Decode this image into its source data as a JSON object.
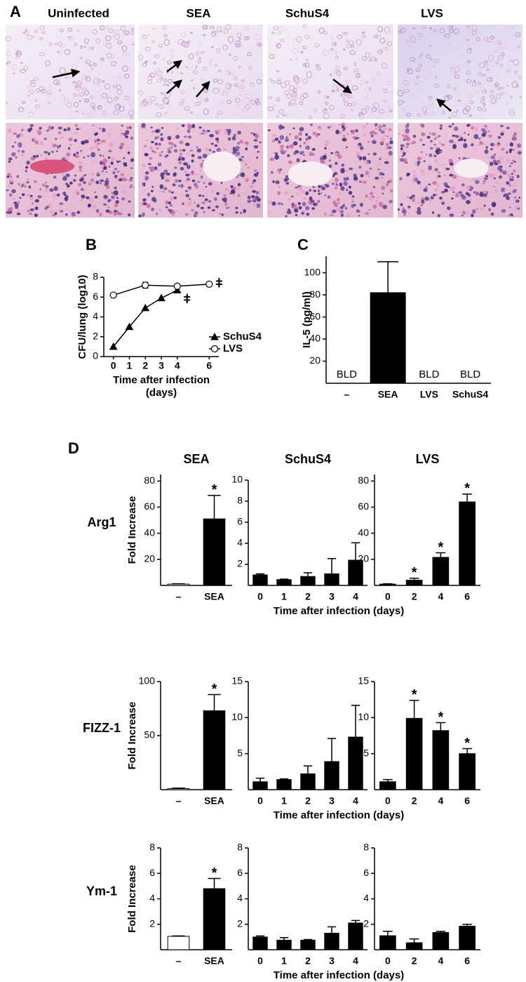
{
  "panels": [
    "A",
    "B",
    "C",
    "D"
  ],
  "histology": {
    "columns": [
      "Uninfected",
      "SEA",
      "SchuS4",
      "LVS"
    ]
  },
  "chart_data": [
    {
      "type": "line",
      "ylabel": "CFU/lung (log10)",
      "xlabel": [
        "Time after infection",
        "(days)"
      ],
      "xlim": [
        -0.6,
        6.6
      ],
      "xticks": [
        0,
        1,
        2,
        3,
        4,
        6
      ],
      "ylim": [
        0,
        8
      ],
      "yticks": [
        0,
        2,
        4,
        6,
        8
      ],
      "legend": "right",
      "series": [
        {
          "name": "SchuS4",
          "color": "#000000",
          "marker": "triangle",
          "annotation": "ǂ",
          "x": [
            0,
            1,
            2,
            3,
            4
          ],
          "values": [
            1.0,
            3.0,
            4.9,
            5.9,
            6.7
          ]
        },
        {
          "name": "LVS",
          "color": "#000000",
          "marker": "circle",
          "marker_fill": "#ffffff",
          "annotation": "ǂ",
          "x": [
            0,
            2,
            4,
            6
          ],
          "values": [
            6.2,
            7.2,
            7.1,
            7.3
          ],
          "errors": [
            0.1,
            0.3,
            0.1,
            0.1
          ]
        }
      ]
    },
    {
      "type": "bar",
      "ylabel": "IL-5 (pg/ml)",
      "categories": [
        "–",
        "SEA",
        "LVS",
        "SchuS4"
      ],
      "values": [
        null,
        82,
        null,
        null
      ],
      "errors": [
        null,
        28,
        null,
        null
      ],
      "value_labels": [
        "BLD",
        null,
        "BLD",
        "BLD"
      ],
      "color": "#000000",
      "ylim": [
        0,
        115
      ],
      "yticks": [
        20,
        40,
        60,
        80,
        100
      ]
    },
    {
      "type": "bar",
      "title": "SEA",
      "row_label": "Arg1",
      "ylabel": "Fold Increase",
      "categories": [
        "–",
        "SEA"
      ],
      "values": [
        1,
        51
      ],
      "errors": [
        0.3,
        18
      ],
      "stars": [
        null,
        "*"
      ],
      "colors": [
        "#ffffff",
        "#000000"
      ],
      "ylim": [
        0,
        85
      ],
      "yticks": [
        20,
        40,
        60,
        80
      ]
    },
    {
      "type": "bar",
      "title": "SchuS4",
      "xlabel": "Time after infection (days)",
      "categories": [
        "0",
        "1",
        "2",
        "3",
        "4"
      ],
      "values": [
        1.0,
        0.55,
        0.85,
        1.1,
        2.4
      ],
      "errors": [
        0.1,
        0.05,
        0.35,
        1.45,
        1.65
      ],
      "color": "#000000",
      "ylim": [
        0,
        10
      ],
      "yticks": [
        2,
        4,
        6,
        8,
        10
      ]
    },
    {
      "type": "bar",
      "title": "LVS",
      "categories": [
        "0",
        "2",
        "4",
        "6"
      ],
      "values": [
        1,
        4,
        21.5,
        64
      ],
      "errors": [
        0.3,
        1.5,
        3.5,
        6
      ],
      "stars": [
        null,
        "*",
        "*",
        "*"
      ],
      "color": "#000000",
      "ylim": [
        0,
        85
      ],
      "yticks": [
        20,
        40,
        60,
        80
      ]
    },
    {
      "type": "bar",
      "row_label": "FIZZ-1",
      "ylabel": "Fold Increase",
      "categories": [
        "–",
        "SEA"
      ],
      "values": [
        1,
        73
      ],
      "errors": [
        0.5,
        15
      ],
      "stars": [
        null,
        "*"
      ],
      "colors": [
        "#ffffff",
        "#000000"
      ],
      "ylim": [
        0,
        100
      ],
      "yticks": [
        50,
        100
      ]
    },
    {
      "type": "bar",
      "xlabel": "Time after infection (days)",
      "categories": [
        "0",
        "1",
        "2",
        "3",
        "4"
      ],
      "values": [
        1.1,
        1.4,
        2.2,
        3.9,
        7.3
      ],
      "errors": [
        0.5,
        0.1,
        1.1,
        3.2,
        4.4
      ],
      "color": "#000000",
      "ylim": [
        0,
        15
      ],
      "yticks": [
        5,
        10,
        15
      ]
    },
    {
      "type": "bar",
      "categories": [
        "0",
        "2",
        "4",
        "6"
      ],
      "values": [
        1.1,
        9.9,
        8.2,
        5.0
      ],
      "errors": [
        0.3,
        2.5,
        1.1,
        0.7
      ],
      "stars": [
        null,
        "*",
        "*",
        "*"
      ],
      "color": "#000000",
      "ylim": [
        0,
        15
      ],
      "yticks": [
        5,
        10,
        15
      ]
    },
    {
      "type": "bar",
      "row_label": "Ym-1",
      "ylabel": "Fold Increase",
      "categories": [
        "–",
        "SEA"
      ],
      "values": [
        1.05,
        4.8
      ],
      "errors": [
        0.03,
        0.8
      ],
      "stars": [
        null,
        "*"
      ],
      "colors": [
        "#ffffff",
        "#000000"
      ],
      "ylim": [
        0,
        8
      ],
      "yticks": [
        2,
        4,
        6,
        8
      ]
    },
    {
      "type": "bar",
      "xlabel": "Time after infection (days)",
      "categories": [
        "0",
        "1",
        "2",
        "3",
        "4"
      ],
      "values": [
        1.0,
        0.75,
        0.75,
        1.3,
        2.1
      ],
      "errors": [
        0.08,
        0.2,
        0.05,
        0.5,
        0.2
      ],
      "color": "#000000",
      "ylim": [
        0,
        8
      ],
      "yticks": [
        2,
        4,
        6,
        8
      ]
    },
    {
      "type": "bar",
      "categories": [
        "0",
        "2",
        "4",
        "6"
      ],
      "values": [
        1.1,
        0.55,
        1.35,
        1.85
      ],
      "errors": [
        0.35,
        0.3,
        0.1,
        0.15
      ],
      "color": "#000000",
      "ylim": [
        0,
        8
      ],
      "yticks": [
        2,
        4,
        6,
        8
      ]
    }
  ]
}
